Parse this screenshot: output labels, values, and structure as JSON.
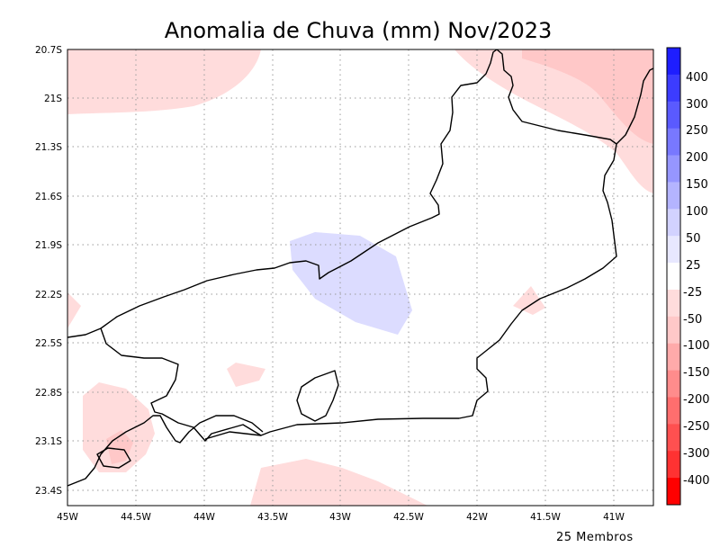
{
  "title": "Anomalia de Chuva (mm) Nov/2023",
  "footer": "25 Membros",
  "chart_data": {
    "type": "heatmap",
    "title": "Anomalia de Chuva (mm) Nov/2023",
    "variable": "Anomalia de Chuva (mm)",
    "period": "Nov/2023",
    "lon_range": [
      -45.0,
      -40.7
    ],
    "lat_range": [
      -23.5,
      -20.7
    ],
    "x_ticks": [
      "45W",
      "44.5W",
      "44W",
      "43.5W",
      "43W",
      "42.5W",
      "42W",
      "41.5W",
      "41W"
    ],
    "y_ticks": [
      "20.7S",
      "21S",
      "21.3S",
      "21.6S",
      "21.9S",
      "22.2S",
      "22.5S",
      "22.8S",
      "23.1S",
      "23.4S"
    ],
    "grid": true,
    "colorbar": {
      "placement": "right",
      "levels": [
        "400",
        "300",
        "250",
        "200",
        "150",
        "100",
        "50",
        "25",
        "-25",
        "-50",
        "-100",
        "-150",
        "-200",
        "-250",
        "-300",
        "-400"
      ],
      "colors": [
        "#1e1eff",
        "#3c3cff",
        "#5a5aff",
        "#7878ff",
        "#9696ff",
        "#b4b4ff",
        "#d2d2ff",
        "#e8e8ff",
        "#ffffff",
        "#ffdcdc",
        "#ffc8c8",
        "#ffaaaa",
        "#ff8c8c",
        "#ff6e6e",
        "#ff5050",
        "#ff3232",
        "#ff0000"
      ]
    },
    "anomaly_regions": [
      {
        "class": "-25 to -50",
        "area": "northwest corner"
      },
      {
        "class": "-25 to -50",
        "area": "northeast coast"
      },
      {
        "class": "-50 to -100",
        "area": "far northeast corner"
      },
      {
        "class": "-25 to -50",
        "area": "southwest, Ilha Grande bay"
      },
      {
        "class": "-25 to -50",
        "area": "south offshore"
      },
      {
        "class": "25 to 50",
        "area": "central north, near 43W 22S"
      }
    ],
    "ensemble_members": 25
  }
}
